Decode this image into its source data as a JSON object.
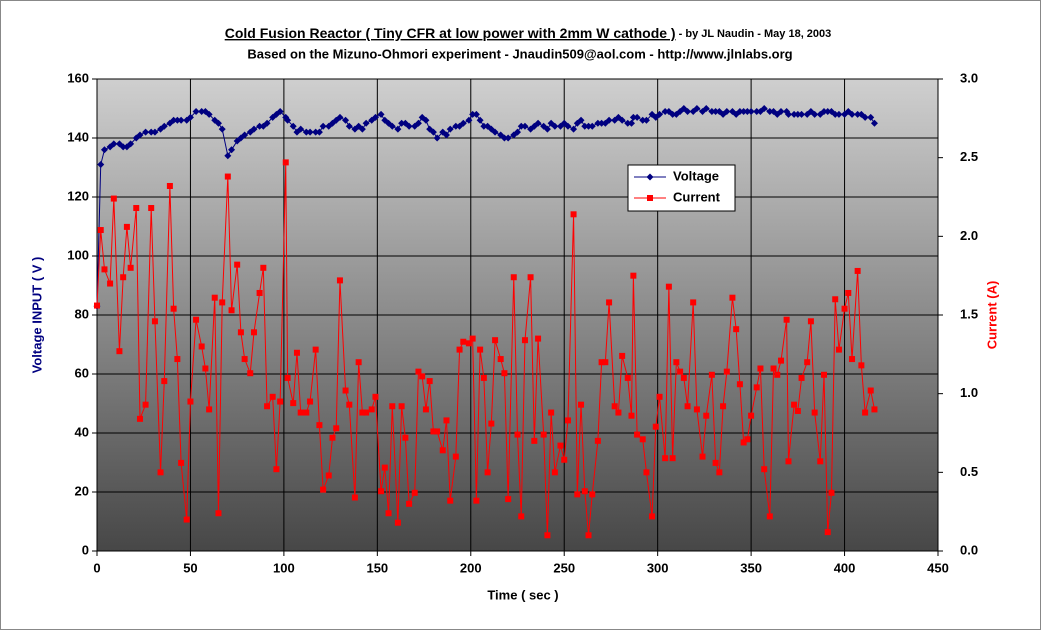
{
  "chart_data": {
    "type": "line",
    "title": "Cold Fusion Reactor ( Tiny CFR at low power with 2mm W cathode )",
    "title_suffix": " - by JL Naudin - May 18, 2003",
    "subtitle": "Based on the Mizuno-Ohmori experiment - Jnaudin509@aol.com - http://www.jlnlabs.org",
    "x_label": "Time ( sec )",
    "y_label": "Voltage INPUT ( V )",
    "y2_label": "Current (A)",
    "xlim": [
      0,
      450
    ],
    "xticks": [
      0,
      50,
      100,
      150,
      200,
      250,
      300,
      350,
      400,
      450
    ],
    "ylim": [
      0,
      160
    ],
    "yticks": [
      0,
      20,
      40,
      60,
      80,
      100,
      120,
      140,
      160
    ],
    "y2lim": [
      0,
      3
    ],
    "y2ticks": [
      {
        "value": 0,
        "label": "0.0"
      },
      0.5,
      {
        "value": 1,
        "label": "1.0"
      },
      1.5,
      {
        "value": 2,
        "label": "2.0"
      },
      2.5,
      {
        "value": 3,
        "label": "3.0"
      }
    ],
    "grid": true,
    "legend": "upper center",
    "x": [
      0,
      2,
      4,
      7,
      9,
      12,
      14,
      16,
      18,
      21,
      23,
      26,
      29,
      31,
      34,
      36,
      39,
      41,
      43,
      45,
      48,
      50,
      53,
      56,
      58,
      60,
      63,
      65,
      67,
      70,
      72,
      75,
      77,
      79,
      82,
      84,
      87,
      89,
      91,
      94,
      96,
      98,
      101,
      102,
      105,
      107,
      109,
      112,
      114,
      117,
      119,
      121,
      124,
      126,
      128,
      130,
      133,
      135,
      138,
      140,
      142,
      144,
      147,
      149,
      152,
      154,
      156,
      158,
      161,
      163,
      165,
      167,
      170,
      172,
      174,
      176,
      178,
      180,
      182,
      185,
      187,
      189,
      192,
      194,
      196,
      199,
      201,
      203,
      205,
      207,
      209,
      211,
      213,
      216,
      218,
      220,
      223,
      225,
      227,
      229,
      232,
      234,
      236,
      239,
      241,
      243,
      245,
      248,
      250,
      252,
      255,
      257,
      259,
      261,
      263,
      265,
      268,
      270,
      272,
      274,
      277,
      279,
      281,
      284,
      286,
      287,
      289,
      292,
      294,
      297,
      299,
      301,
      304,
      306,
      308,
      310,
      312,
      314,
      316,
      319,
      321,
      324,
      326,
      329,
      331,
      333,
      335,
      337,
      340,
      342,
      344,
      346,
      348,
      350,
      353,
      355,
      357,
      360,
      362,
      364,
      366,
      369,
      370,
      373,
      375,
      377,
      380,
      382,
      384,
      387,
      389,
      391,
      393,
      395,
      397,
      400,
      402,
      404,
      407,
      409,
      411,
      414,
      416
    ],
    "series": [
      {
        "name": "Voltage",
        "color": "#000080",
        "marker": "diamond",
        "axis": "y",
        "values": [
          83,
          131,
          136,
          137,
          138,
          138,
          137,
          137,
          138,
          140,
          141,
          142,
          142,
          142,
          143,
          144,
          145,
          146,
          146,
          146,
          146,
          147,
          149,
          149,
          149,
          148,
          146,
          145,
          143,
          134,
          136,
          139,
          140,
          141,
          142,
          143,
          144,
          144,
          145,
          147,
          148,
          149,
          147,
          146,
          144,
          142,
          143,
          142,
          142,
          142,
          142,
          144,
          144,
          145,
          146,
          147,
          146,
          144,
          143,
          144,
          143,
          145,
          146,
          147,
          148,
          146,
          145,
          144,
          143,
          145,
          145,
          144,
          144,
          145,
          147,
          146,
          143,
          142,
          140,
          142,
          141,
          143,
          144,
          144,
          145,
          146,
          148,
          148,
          146,
          144,
          144,
          143,
          142,
          141,
          140,
          140,
          141,
          142,
          144,
          144,
          143,
          144,
          145,
          144,
          143,
          145,
          144,
          144,
          145,
          144,
          143,
          145,
          146,
          144,
          144,
          144,
          145,
          145,
          145,
          146,
          146,
          147,
          146,
          145,
          145,
          147,
          147,
          146,
          146,
          148,
          147,
          148,
          149,
          149,
          148,
          148,
          149,
          150,
          149,
          149,
          150,
          149,
          150,
          149,
          149,
          149,
          148,
          149,
          149,
          148,
          149,
          149,
          149,
          149,
          149,
          149,
          150,
          149,
          149,
          148,
          149,
          149,
          148,
          148,
          148,
          148,
          148,
          149,
          148,
          148,
          149,
          149,
          149,
          148,
          148,
          148,
          149,
          148,
          148,
          148,
          147,
          147,
          145
        ]
      },
      {
        "name": "Current",
        "color": "#ff0000",
        "marker": "square",
        "axis": "y2",
        "values": [
          1.56,
          2.04,
          1.79,
          1.7,
          2.24,
          1.27,
          1.74,
          2.06,
          1.8,
          2.18,
          0.84,
          0.93,
          2.18,
          1.46,
          0.5,
          1.08,
          2.32,
          1.54,
          1.22,
          0.56,
          0.2,
          0.95,
          1.47,
          1.3,
          1.16,
          0.9,
          1.61,
          0.24,
          1.58,
          2.38,
          1.53,
          1.82,
          1.39,
          1.22,
          1.13,
          1.39,
          1.64,
          1.8,
          0.92,
          0.98,
          0.52,
          0.95,
          2.47,
          1.1,
          0.94,
          1.26,
          0.88,
          0.88,
          0.95,
          1.28,
          0.8,
          0.39,
          0.48,
          0.72,
          0.78,
          1.72,
          1.02,
          0.93,
          0.34,
          1.2,
          0.88,
          0.88,
          0.9,
          0.98,
          0.38,
          0.53,
          0.24,
          0.92,
          0.18,
          0.92,
          0.72,
          0.3,
          0.37,
          1.14,
          1.11,
          0.9,
          1.08,
          0.76,
          0.76,
          0.64,
          0.83,
          0.32,
          0.6,
          1.28,
          1.33,
          1.32,
          1.35,
          0.32,
          1.28,
          1.1,
          0.5,
          0.81,
          1.34,
          1.22,
          1.13,
          0.33,
          1.74,
          0.74,
          0.22,
          1.34,
          1.74,
          0.7,
          1.35,
          0.74,
          0.1,
          0.88,
          0.5,
          0.67,
          0.58,
          0.83,
          2.14,
          0.36,
          0.93,
          0.38,
          0.1,
          0.36,
          0.7,
          1.2,
          1.2,
          1.58,
          0.92,
          0.88,
          1.24,
          1.1,
          0.86,
          1.75,
          0.74,
          0.71,
          0.5,
          0.22,
          0.79,
          0.98,
          0.59,
          1.68,
          0.59,
          1.2,
          1.14,
          1.1,
          0.92,
          1.58,
          0.9,
          0.6,
          0.86,
          1.12,
          0.56,
          0.5,
          0.92,
          1.14,
          1.61,
          1.41,
          1.06,
          0.69,
          0.71,
          0.86,
          1.04,
          1.16,
          0.52,
          0.22,
          1.16,
          1.12,
          1.21,
          1.47,
          0.57,
          0.93,
          0.89,
          1.1,
          1.2,
          1.46,
          0.88,
          0.57,
          1.12,
          0.12,
          0.37,
          1.6,
          1.28,
          1.54,
          1.64,
          1.22,
          1.78,
          1.18,
          0.88,
          1.02,
          0.9
        ]
      }
    ]
  }
}
